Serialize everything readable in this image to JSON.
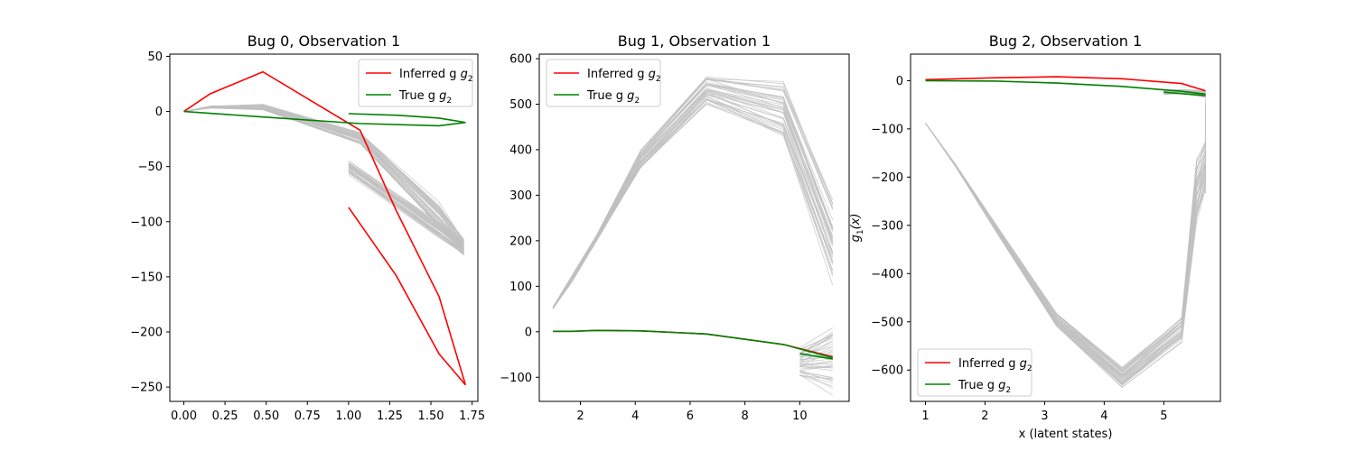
{
  "figure": {
    "background": "#ffffff"
  },
  "colors": {
    "inferred": "#ff0000",
    "true": "#008000",
    "samples": "#c0c0c0"
  },
  "chart_data": [
    {
      "type": "line",
      "title": "Bug 0, Observation 1",
      "xlabel": "",
      "ylabel": "",
      "xlim": [
        -0.085,
        1.785
      ],
      "ylim": [
        -263,
        52
      ],
      "xticks": [
        0,
        0.25,
        0.5,
        0.75,
        1.0,
        1.25,
        1.5,
        1.75
      ],
      "xtick_labels": [
        "0.00",
        "0.25",
        "0.50",
        "0.75",
        "1.00",
        "1.25",
        "1.50",
        "1.75"
      ],
      "yticks": [
        50,
        0,
        -50,
        -100,
        -150,
        -200,
        -250
      ],
      "ytick_labels": [
        "50",
        "0",
        "−50",
        "−100",
        "−150",
        "−200",
        "−250"
      ],
      "legend": {
        "placement": "upper right",
        "entries": [
          "Inferred g",
          "True g"
        ],
        "subscript": "2"
      },
      "samples": {
        "count": 40,
        "upper": {
          "x": [
            0,
            0.16,
            0.48,
            1.07,
            1.55,
            1.7
          ],
          "lo": [
            0,
            3,
            1,
            -30,
            -108,
            -130
          ],
          "hi": [
            0,
            5,
            7,
            -18,
            -82,
            -115
          ]
        },
        "lower": {
          "x": [
            1.0,
            1.55,
            1.7
          ],
          "lo": [
            -58,
            -115,
            -132
          ],
          "hi": [
            -44,
            -100,
            -118
          ]
        }
      },
      "series": [
        {
          "name": "Inferred g2",
          "color_key": "inferred",
          "segments": [
            {
              "x": [
                0,
                0.16,
                0.48,
                1.07,
                1.29,
                1.55,
                1.71
              ],
              "y": [
                0,
                16,
                36,
                -17,
                -90,
                -168,
                -248
              ]
            },
            {
              "x": [
                1.0,
                1.29,
                1.55,
                1.71
              ],
              "y": [
                -87,
                -149,
                -220,
                -248
              ]
            }
          ]
        },
        {
          "name": "True g2",
          "color_key": "true",
          "segments": [
            {
              "x": [
                0,
                0.48,
                1.07,
                1.55,
                1.71
              ],
              "y": [
                0,
                -5,
                -11,
                -13,
                -10
              ]
            },
            {
              "x": [
                1.0,
                1.3,
                1.55,
                1.71
              ],
              "y": [
                -2,
                -3.5,
                -6,
                -10
              ]
            }
          ]
        }
      ]
    },
    {
      "type": "line",
      "title": "Bug 1, Observation 1",
      "xlabel": "",
      "ylabel": "",
      "xlim": [
        0.5,
        11.8
      ],
      "ylim": [
        -153,
        610
      ],
      "xticks": [
        2,
        4,
        6,
        8,
        10
      ],
      "xtick_labels": [
        "2",
        "4",
        "6",
        "8",
        "10"
      ],
      "yticks": [
        600,
        500,
        400,
        300,
        200,
        100,
        0,
        -100
      ],
      "ytick_labels": [
        "600",
        "500",
        "400",
        "300",
        "200",
        "100",
        "0",
        "−100"
      ],
      "legend": {
        "placement": "upper left",
        "entries": [
          "Inferred g",
          "True g"
        ],
        "subscript": "2"
      },
      "samples": {
        "count": 40,
        "upper": {
          "x": [
            1,
            1.7,
            2.6,
            4.2,
            6.6,
            9.4,
            11.2
          ],
          "lo": [
            50,
            110,
            200,
            355,
            495,
            410,
            100
          ],
          "hi": [
            55,
            125,
            215,
            405,
            570,
            555,
            295
          ]
        },
        "lower": {
          "x": [
            10.0,
            11.2
          ],
          "lo": [
            -105,
            -140
          ],
          "hi": [
            -35,
            30
          ]
        }
      },
      "series": [
        {
          "name": "Inferred g2",
          "color_key": "inferred",
          "segments": [
            {
              "x": [
                1,
                1.7,
                2.6,
                4.2,
                6.6,
                9.4,
                11.2
              ],
              "y": [
                1,
                1,
                3,
                2,
                -5,
                -28,
                -55
              ]
            }
          ]
        },
        {
          "name": "True g2",
          "color_key": "true",
          "segments": [
            {
              "x": [
                1,
                1.7,
                2.6,
                4.2,
                6.6,
                9.4,
                11.2
              ],
              "y": [
                1,
                1,
                3,
                2,
                -5,
                -28,
                -57
              ]
            },
            {
              "x": [
                10.0,
                11.2
              ],
              "y": [
                -48,
                -60
              ]
            }
          ]
        }
      ]
    },
    {
      "type": "line",
      "title": "Bug 2, Observation 1",
      "xlabel": "x (latent states)",
      "ylabel": "g_1(x)",
      "xlim": [
        0.75,
        5.95
      ],
      "ylim": [
        -665,
        55
      ],
      "xticks": [
        1,
        2,
        3,
        4,
        5
      ],
      "xtick_labels": [
        "1",
        "2",
        "3",
        "4",
        "5"
      ],
      "yticks": [
        0,
        -100,
        -200,
        -300,
        -400,
        -500,
        -600
      ],
      "ytick_labels": [
        "0",
        "−100",
        "−200",
        "−300",
        "−400",
        "−500",
        "−600"
      ],
      "legend": {
        "placement": "lower left",
        "entries": [
          "Inferred g",
          "True g"
        ],
        "subscript": "2"
      },
      "samples": {
        "count": 40,
        "upper": {
          "x": [
            1,
            1.5,
            2.2,
            3.2,
            4.3,
            5.3,
            5.55,
            5.7,
            5.7
          ],
          "lo": [
            -88,
            -178,
            -318,
            -512,
            -637,
            -545,
            -300,
            -235,
            -240
          ],
          "hi": [
            -88,
            -172,
            -300,
            -480,
            -592,
            -485,
            -160,
            -120,
            -10
          ]
        },
        "lower": {
          "x": [
            5.0,
            5.3,
            5.7
          ],
          "lo": [
            -30,
            -28,
            -35
          ],
          "hi": [
            -18,
            -18,
            -20
          ]
        }
      },
      "series": [
        {
          "name": "Inferred g2",
          "color_key": "inferred",
          "segments": [
            {
              "x": [
                1,
                2.2,
                3.2,
                4.3,
                5.3,
                5.7
              ],
              "y": [
                2,
                6,
                8,
                4,
                -6,
                -21
              ]
            }
          ]
        },
        {
          "name": "True g2",
          "color_key": "true",
          "segments": [
            {
              "x": [
                1,
                2.2,
                3.2,
                4.3,
                5.3,
                5.7
              ],
              "y": [
                0,
                -1,
                -5,
                -12,
                -22,
                -28
              ]
            },
            {
              "x": [
                5.0,
                5.7
              ],
              "y": [
                -24,
                -31
              ]
            }
          ]
        }
      ]
    }
  ]
}
